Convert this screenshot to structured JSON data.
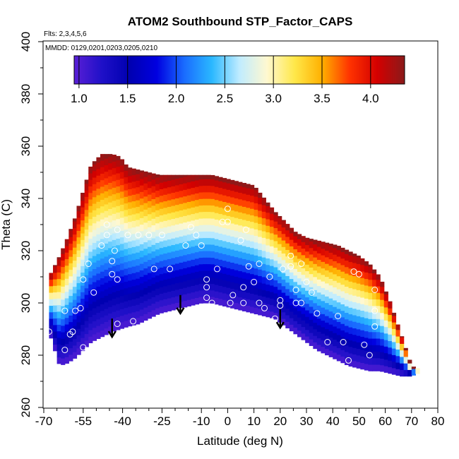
{
  "chart_data": {
    "type": "heatmap",
    "title": "ATOM2 Southbound STP_Factor_CAPS",
    "flights_note": "Flts: 2,3,4,5,6",
    "dates_note": "MMDD: 0129,0201,0203,0205,0210",
    "xlabel": "Latitude (deg N)",
    "ylabel": "Theta (C)",
    "xlim": [
      -70,
      80
    ],
    "ylim": [
      260,
      400
    ],
    "xticks": [
      -70,
      -55,
      -40,
      -25,
      -10,
      0,
      10,
      20,
      30,
      40,
      50,
      60,
      70,
      80
    ],
    "yticks": [
      260,
      280,
      300,
      320,
      340,
      360,
      380,
      400
    ],
    "colorbar": {
      "range": [
        0.95,
        4.35
      ],
      "ticks": [
        1.0,
        1.5,
        2.0,
        2.5,
        3.0,
        3.5,
        4.0
      ],
      "tick_labels": [
        "1.0",
        "1.5",
        "2.0",
        "2.5",
        "3.0",
        "3.5",
        "4.0"
      ],
      "colors": [
        "#5a1fd6",
        "#1f10c8",
        "#0000b0",
        "#0000e0",
        "#1a6cff",
        "#2ab8ff",
        "#c0ecff",
        "#fff8d0",
        "#ffe84a",
        "#ffb000",
        "#ff3300",
        "#d40000",
        "#8a1a1a"
      ]
    },
    "field_profile": {
      "lat": [
        -68,
        -64,
        -61,
        -58,
        -55,
        -52,
        -48,
        -44,
        -41,
        -38,
        -34,
        -30,
        -26,
        -22,
        -18,
        -14,
        -10,
        -6,
        -2,
        2,
        6,
        10,
        14,
        18,
        22,
        26,
        30,
        34,
        38,
        42,
        46,
        50,
        54,
        58,
        62,
        66,
        70,
        72
      ],
      "floor": [
        289,
        276,
        277,
        279,
        282,
        285,
        287,
        289,
        290,
        291,
        292,
        294,
        296,
        297,
        298,
        299,
        300,
        300,
        299,
        298,
        297,
        296,
        295,
        294,
        291,
        288,
        285,
        282,
        280,
        278,
        276,
        275,
        274,
        274,
        273,
        272,
        272,
        273
      ],
      "top": [
        310,
        318,
        325,
        333,
        343,
        353,
        357,
        357,
        356,
        352,
        351,
        350,
        349,
        349,
        349,
        349,
        349,
        349,
        348,
        347,
        346,
        345,
        340,
        335,
        331,
        327,
        325,
        324,
        323,
        322,
        320,
        318,
        315,
        310,
        300,
        288,
        276,
        275
      ],
      "min_value": 1.0,
      "max_value": 4.35
    },
    "observation_points": [
      [
        -68,
        289
      ],
      [
        -62,
        297
      ],
      [
        -62,
        282
      ],
      [
        -60,
        288
      ],
      [
        -59,
        289
      ],
      [
        -56,
        298
      ],
      [
        -55,
        283
      ],
      [
        -58,
        297
      ],
      [
        -55,
        309
      ],
      [
        -53,
        315
      ],
      [
        -51,
        304
      ],
      [
        -48,
        322
      ],
      [
        -46,
        330
      ],
      [
        -46,
        326
      ],
      [
        -44,
        311
      ],
      [
        -44,
        316
      ],
      [
        -43,
        320
      ],
      [
        -42,
        328
      ],
      [
        -42,
        309
      ],
      [
        -42,
        292
      ],
      [
        -38,
        326
      ],
      [
        -36,
        293
      ],
      [
        -34,
        326
      ],
      [
        -30,
        326
      ],
      [
        -28,
        313
      ],
      [
        -25,
        326
      ],
      [
        -22,
        313
      ],
      [
        -18,
        297
      ],
      [
        -16,
        322
      ],
      [
        -14,
        329
      ],
      [
        -12,
        326
      ],
      [
        -10,
        322
      ],
      [
        -8,
        309
      ],
      [
        -8,
        306
      ],
      [
        -8,
        302
      ],
      [
        -6,
        300
      ],
      [
        -4,
        313
      ],
      [
        -2,
        331
      ],
      [
        0,
        336
      ],
      [
        0,
        331
      ],
      [
        1,
        300
      ],
      [
        2,
        303
      ],
      [
        5,
        324
      ],
      [
        6,
        300
      ],
      [
        6,
        306
      ],
      [
        7,
        328
      ],
      [
        8,
        314
      ],
      [
        10,
        308
      ],
      [
        12,
        315
      ],
      [
        12,
        300
      ],
      [
        14,
        298
      ],
      [
        16,
        310
      ],
      [
        18,
        294
      ],
      [
        18,
        292
      ],
      [
        20,
        299
      ],
      [
        20,
        301
      ],
      [
        21,
        313
      ],
      [
        24,
        318
      ],
      [
        24,
        314
      ],
      [
        26,
        305
      ],
      [
        26,
        300
      ],
      [
        28,
        300
      ],
      [
        28,
        315
      ],
      [
        30,
        308
      ],
      [
        32,
        304
      ],
      [
        34,
        296
      ],
      [
        38,
        285
      ],
      [
        42,
        295
      ],
      [
        44,
        285
      ],
      [
        46,
        278
      ],
      [
        48,
        312
      ],
      [
        50,
        311
      ],
      [
        52,
        284
      ],
      [
        54,
        280
      ],
      [
        56,
        297
      ],
      [
        56,
        291
      ],
      [
        56,
        305
      ]
    ],
    "arrow_latitudes": [
      -44,
      -18,
      20
    ]
  }
}
